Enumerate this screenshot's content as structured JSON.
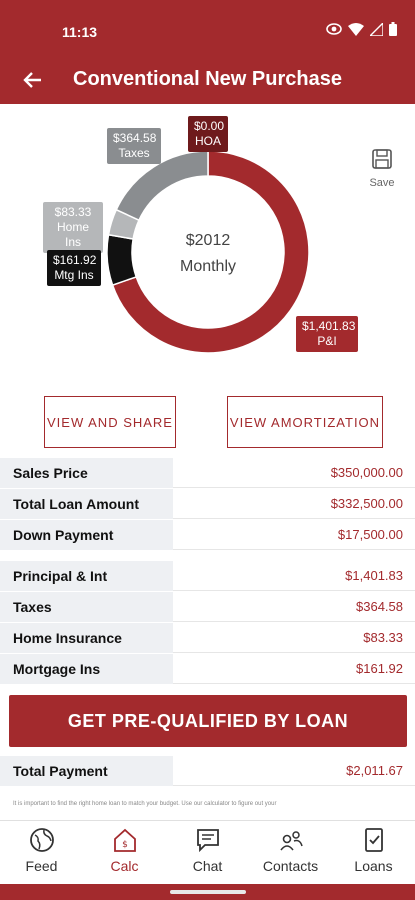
{
  "status": {
    "time": "11:13"
  },
  "header": {
    "title": "Conventional New Purchase"
  },
  "chart": {
    "center_amount": "$2012",
    "center_label": "Monthly",
    "save_label": "Save",
    "labels": {
      "hoa": [
        "$0.00",
        "HOA"
      ],
      "taxes": [
        "$364.58",
        "Taxes"
      ],
      "home_ins": [
        "$83.33",
        "Home Ins"
      ],
      "mtg_ins": [
        "$161.92",
        "Mtg Ins"
      ],
      "pi": [
        "$1,401.83",
        "P&I"
      ]
    },
    "colors": {
      "pi": "#a32a2d",
      "taxes": "#8a8d90",
      "home_ins": "#b5b7b9",
      "mtg_ins": "#111111",
      "hoa": "#6e1a1c"
    }
  },
  "chart_data": {
    "type": "pie",
    "title": "",
    "categories": [
      "P&I",
      "Mtg Ins",
      "Home Ins",
      "Taxes",
      "HOA"
    ],
    "values": [
      1401.83,
      161.92,
      83.33,
      364.58,
      0.0
    ]
  },
  "actions": {
    "view_share": "VIEW AND SHARE",
    "view_amort": "VIEW AMORTIZATION"
  },
  "summary": [
    {
      "label": "Sales Price",
      "value": "$350,000.00"
    },
    {
      "label": "Total Loan Amount",
      "value": "$332,500.00"
    },
    {
      "label": "Down Payment",
      "value": "$17,500.00"
    }
  ],
  "breakdown": [
    {
      "label": "Principal & Int",
      "value": "$1,401.83"
    },
    {
      "label": "Taxes",
      "value": "$364.58"
    },
    {
      "label": "Home Insurance",
      "value": "$83.33"
    },
    {
      "label": "Mortgage Ins",
      "value": "$161.92"
    }
  ],
  "cta": {
    "label": "GET PRE-QUALIFIED BY LOAN"
  },
  "total": {
    "label": "Total Payment",
    "value": "$2,011.67"
  },
  "disclaimer": "It is important to find the right home loan to match your budget. Use our calculator to figure out your",
  "nav": {
    "items": [
      {
        "label": "Feed",
        "icon": "globe-icon"
      },
      {
        "label": "Calc",
        "icon": "calculator-house-icon"
      },
      {
        "label": "Chat",
        "icon": "chat-icon"
      },
      {
        "label": "Contacts",
        "icon": "contacts-icon"
      },
      {
        "label": "Loans",
        "icon": "loan-document-icon"
      }
    ]
  }
}
